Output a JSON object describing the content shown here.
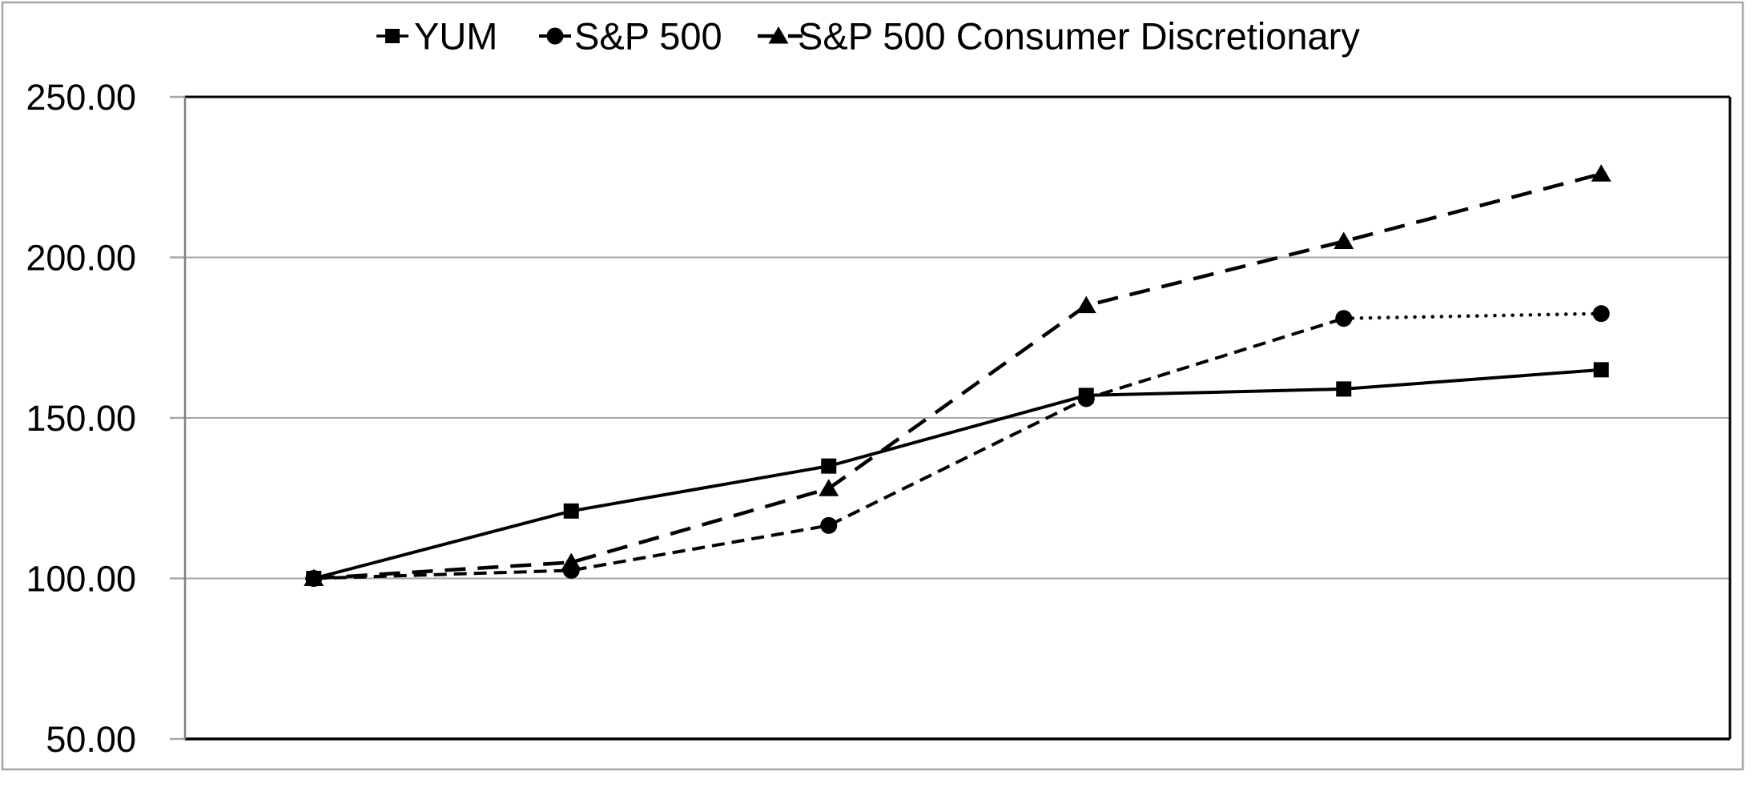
{
  "chart_data": {
    "type": "line",
    "title": "",
    "x": [
      1,
      2,
      3,
      4,
      5,
      6
    ],
    "x_tick_labels": [],
    "y_tick_labels": [
      "250.00",
      "200.00",
      "150.00",
      "100.00",
      "50.00"
    ],
    "ylim": [
      50,
      250
    ],
    "grid": "horizontal-major",
    "legend_position": "top-center",
    "series": [
      {
        "name": "YUM",
        "marker": "square",
        "line_style": "solid",
        "color": "#000000",
        "values": [
          100,
          121,
          135,
          157,
          159,
          165
        ]
      },
      {
        "name": "S&P 500",
        "marker": "circle",
        "line_style": "short-dash",
        "last_segment_style": "dotted",
        "color": "#000000",
        "values": [
          100,
          102.5,
          116.5,
          156,
          181,
          182.5
        ]
      },
      {
        "name": "S&P 500 Consumer Discretionary",
        "marker": "triangle",
        "line_style": "long-dash",
        "color": "#000000",
        "values": [
          100,
          105,
          128,
          185,
          205,
          226
        ]
      }
    ],
    "colors": {
      "series": "#000000",
      "gridline": "#A6A6A6",
      "axis_line": "#808080",
      "plot_border": "#000000",
      "chart_border": "#A6A6A6",
      "text": "#000000",
      "background": "#FFFFFF"
    }
  }
}
